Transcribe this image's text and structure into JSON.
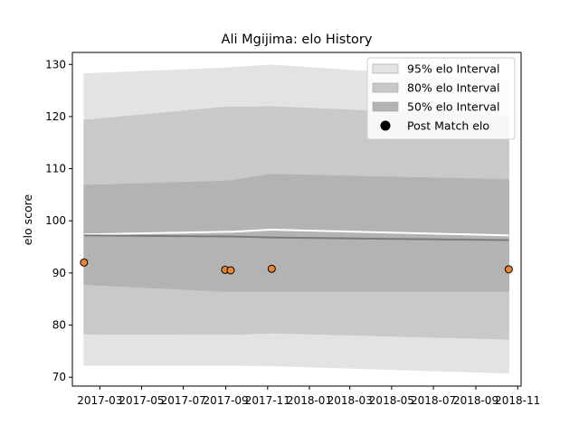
{
  "chart_data": {
    "type": "area",
    "title": "Ali Mgijima: elo History",
    "xlabel": "",
    "ylabel": "elo score",
    "xlim": [
      "2017-01-20",
      "2018-11-06"
    ],
    "ylim": [
      68.3,
      132.3
    ],
    "x_ticks": [
      "2017-03",
      "2017-05",
      "2017-07",
      "2017-09",
      "2017-11",
      "2018-01",
      "2018-03",
      "2018-05",
      "2018-07",
      "2018-09",
      "2018-11"
    ],
    "x_tick_labels": [
      "2017-03",
      "2017-05",
      "2017-07",
      "2017-09",
      "2017-11",
      "2018-01",
      "2018-03",
      "2018-05",
      "2018-07",
      "2018-09",
      "2018-11"
    ],
    "y_ticks": [
      70,
      80,
      90,
      100,
      110,
      120,
      130
    ],
    "grid": false,
    "legend_position": "top-right",
    "x": [
      "2017-02-06",
      "2017-08-31",
      "2017-09-08",
      "2017-11-07",
      "2018-10-19"
    ],
    "series": [
      {
        "name": "95% elo Interval",
        "kind": "band",
        "color": "#e3e3e3",
        "lower": [
          72.3,
          72.3,
          72.3,
          72.2,
          70.8
        ],
        "upper": [
          128.2,
          129.3,
          129.4,
          129.9,
          126.8
        ]
      },
      {
        "name": "80% elo Interval",
        "kind": "band",
        "color": "#c9c9c9",
        "lower": [
          78.3,
          78.2,
          78.2,
          78.5,
          77.3
        ],
        "upper": [
          119.3,
          121.8,
          121.8,
          121.9,
          119.9
        ]
      },
      {
        "name": "50% elo Interval",
        "kind": "band",
        "color": "#b3b3b3",
        "lower": [
          87.8,
          86.5,
          86.5,
          86.5,
          86.5
        ],
        "upper": [
          106.8,
          107.6,
          107.7,
          108.9,
          107.9
        ]
      },
      {
        "kind": "line",
        "color": "#ffffff",
        "values": [
          97.4,
          97.9,
          97.9,
          98.3,
          97.2
        ]
      },
      {
        "kind": "line",
        "color": "#7a7a7a",
        "values": [
          97.2,
          97.0,
          97.0,
          96.8,
          96.3
        ]
      },
      {
        "name": "Post Match elo",
        "kind": "scatter",
        "color": "#e8852e",
        "edge_color": "#000000",
        "x": [
          "2017-02-06",
          "2017-08-31",
          "2017-09-08",
          "2017-11-07",
          "2018-10-19"
        ],
        "values": [
          92.0,
          90.6,
          90.5,
          90.8,
          90.7
        ]
      }
    ]
  }
}
